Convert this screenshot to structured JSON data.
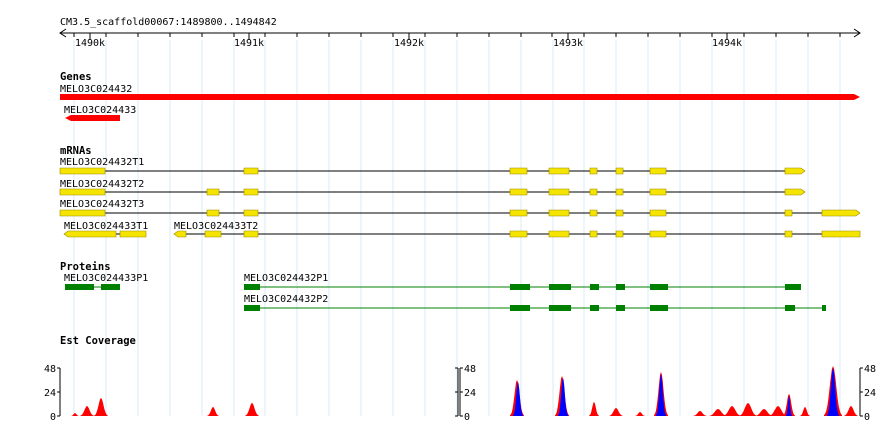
{
  "ruler": {
    "location": "CM3.5_scaffold00067:1489800..1494842",
    "ticks": [
      "1490k",
      "1491k",
      "1492k",
      "1493k",
      "1494k"
    ]
  },
  "tracks": {
    "genes": {
      "label": "Genes",
      "features": [
        {
          "name": "MELO3C024432",
          "strand": "+"
        },
        {
          "name": "MELO3C024433",
          "strand": "-"
        }
      ]
    },
    "mrnas": {
      "label": "mRNAs",
      "features": [
        {
          "name": "MELO3C024432T1"
        },
        {
          "name": "MELO3C024432T2"
        },
        {
          "name": "MELO3C024432T3"
        },
        {
          "name": "MELO3C024433T1"
        },
        {
          "name": "MELO3C024433T2"
        }
      ]
    },
    "proteins": {
      "label": "Proteins",
      "features": [
        {
          "name": "MELO3C024433P1"
        },
        {
          "name": "MELO3C024432P1"
        },
        {
          "name": "MELO3C024432P2"
        }
      ]
    },
    "est": {
      "label": "Est Coverage",
      "y_max": "48",
      "y_mid": "24",
      "y_min": "0"
    }
  },
  "colors": {
    "gene": "#ff0000",
    "mrna": "#f5e400",
    "protein": "#008000",
    "est_plus": "#ff0000",
    "est_minus": "#0000ff",
    "grid_major": "#a9d9ec",
    "grid_minor": "#d9eef6"
  }
}
